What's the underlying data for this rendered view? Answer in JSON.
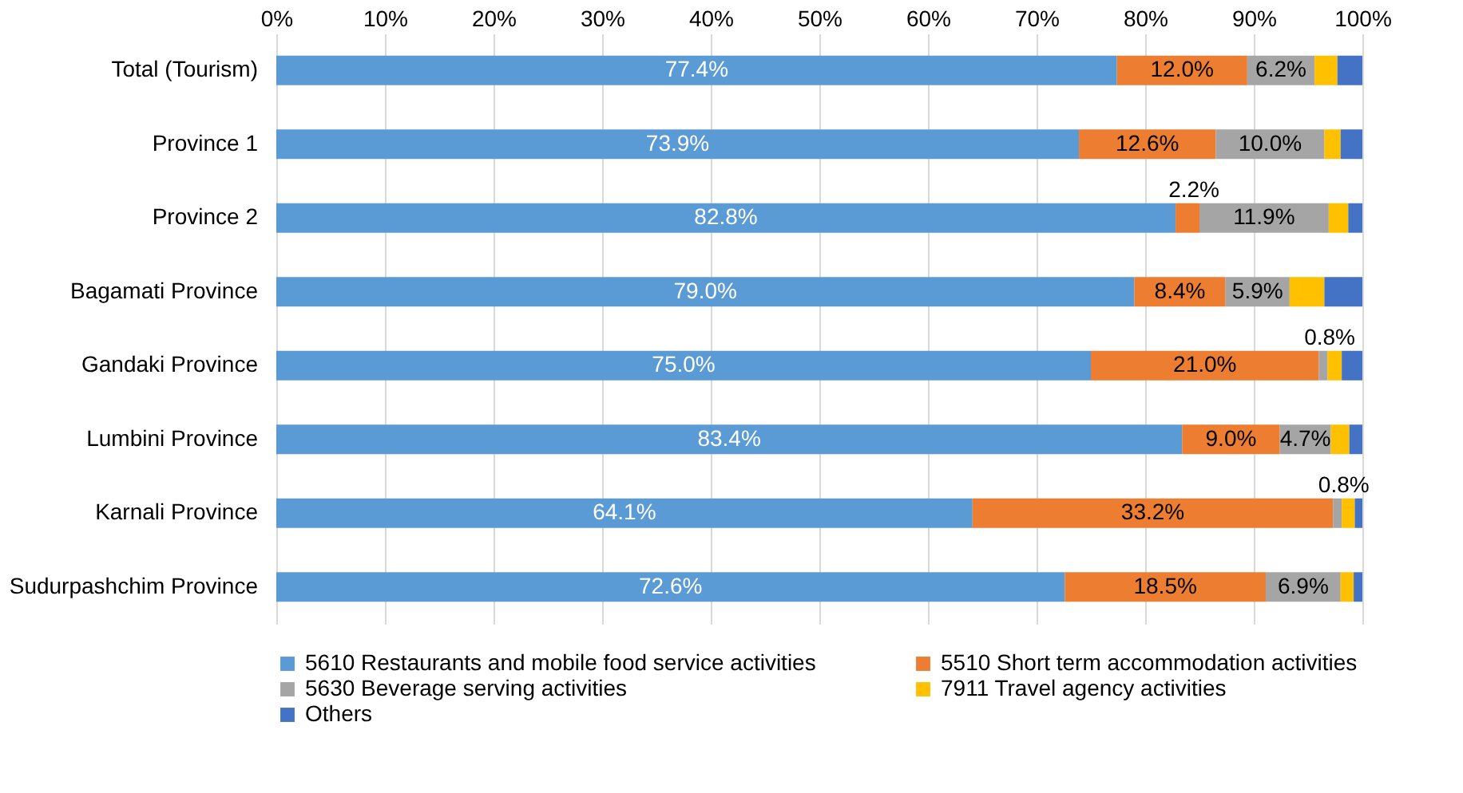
{
  "chart_data": {
    "type": "bar",
    "orientation": "horizontal",
    "stacked": true,
    "categories": [
      "Total (Tourism)",
      "Province 1",
      "Province 2",
      "Bagamati Province",
      "Gandaki Province",
      "Lumbini Province",
      "Karnali Province",
      "Sudurpashchim Province"
    ],
    "series": [
      {
        "name": "5610 Restaurants and mobile food service activities",
        "color": "#5b9bd5",
        "values": [
          77.4,
          73.9,
          82.8,
          79.0,
          75.0,
          83.4,
          64.1,
          72.6
        ],
        "value_labels": [
          "77.4%",
          "73.9%",
          "82.8%",
          "79.0%",
          "75.0%",
          "83.4%",
          "64.1%",
          "72.6%"
        ]
      },
      {
        "name": "5510 Short term accommodation activities",
        "color": "#ed7d31",
        "values": [
          12.0,
          12.6,
          2.2,
          8.4,
          21.0,
          9.0,
          33.2,
          18.5
        ],
        "value_labels": [
          "12.0%",
          "12.6%",
          "2.2%",
          "8.4%",
          "21.0%",
          "9.0%",
          "33.2%",
          "18.5%"
        ]
      },
      {
        "name": "5630 Beverage serving activities",
        "color": "#a5a5a5",
        "values": [
          6.2,
          10.0,
          11.9,
          5.9,
          0.8,
          4.7,
          0.8,
          6.9
        ],
        "value_labels": [
          "6.2%",
          "10.0%",
          "11.9%",
          "5.9%",
          "0.8%",
          "4.7%",
          "0.8%",
          "6.9%"
        ]
      },
      {
        "name": "7911 Travel agency activities",
        "color": "#ffc000",
        "values": [
          2.1,
          1.5,
          1.8,
          3.2,
          1.3,
          1.7,
          1.2,
          1.2
        ]
      },
      {
        "name": "Others",
        "color": "#4472c4",
        "values": [
          2.3,
          2.0,
          1.3,
          3.5,
          1.9,
          1.2,
          0.7,
          0.8
        ]
      }
    ],
    "xlim": [
      0,
      100
    ],
    "xticks": [
      {
        "value": 0,
        "label": "0%"
      },
      {
        "value": 10,
        "label": "10%"
      },
      {
        "value": 20,
        "label": "20%"
      },
      {
        "value": 30,
        "label": "30%"
      },
      {
        "value": 40,
        "label": "40%"
      },
      {
        "value": 50,
        "label": "50%"
      },
      {
        "value": 60,
        "label": "60%"
      },
      {
        "value": 70,
        "label": "70%"
      },
      {
        "value": 80,
        "label": "80%"
      },
      {
        "value": 90,
        "label": "90%"
      },
      {
        "value": 100,
        "label": "100%"
      }
    ],
    "grid": "x",
    "legend": "bottom"
  }
}
